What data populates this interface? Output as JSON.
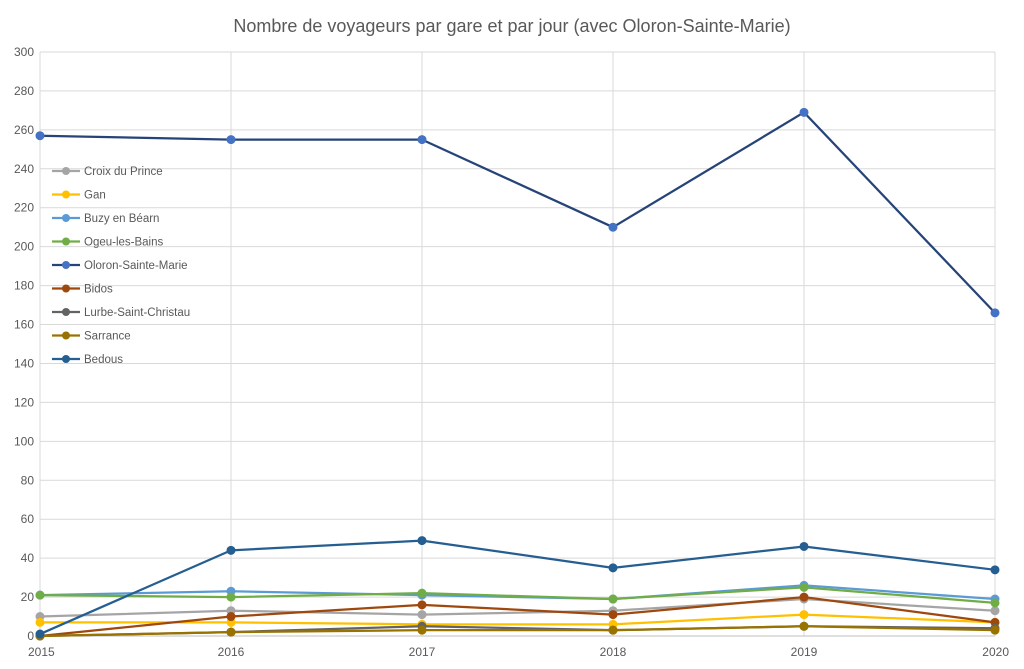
{
  "chart_data": {
    "type": "line",
    "title": "Nombre de voyageurs par gare et par jour (avec Oloron-Sainte-Marie)",
    "xlabel": "",
    "ylabel": "",
    "x": [
      "2015",
      "2016",
      "2017",
      "2018",
      "2019",
      "2020"
    ],
    "ylim": [
      0,
      300
    ],
    "yticks": [
      0,
      20,
      40,
      60,
      80,
      100,
      120,
      140,
      160,
      180,
      200,
      220,
      240,
      260,
      280,
      300
    ],
    "grid": true,
    "legend": "left",
    "series": [
      {
        "name": "Croix du Prince",
        "color": "#a5a5a5",
        "values": [
          10,
          13,
          11,
          13,
          19,
          13
        ]
      },
      {
        "name": "Gan",
        "color": "#ffc000",
        "values": [
          7,
          7,
          6,
          6,
          11,
          7
        ]
      },
      {
        "name": "Buzy en Béarn",
        "color": "#5b9bd5",
        "values": [
          21,
          23,
          21,
          19,
          26,
          19
        ]
      },
      {
        "name": "Ogeu-les-Bains",
        "color": "#70ad47",
        "values": [
          21,
          20,
          22,
          19,
          25,
          17
        ]
      },
      {
        "name": "Oloron-Sainte-Marie",
        "color": "#264478",
        "marker": "#4472c4",
        "values": [
          257,
          255,
          255,
          210,
          269,
          166
        ]
      },
      {
        "name": "Bidos",
        "color": "#9e480e",
        "values": [
          0,
          10,
          16,
          11,
          20,
          7
        ]
      },
      {
        "name": "Lurbe-Saint-Christau",
        "color": "#636363",
        "values": [
          0,
          2,
          5,
          3,
          5,
          4
        ]
      },
      {
        "name": "Sarrance",
        "color": "#997300",
        "values": [
          0,
          2,
          3,
          3,
          5,
          3
        ]
      },
      {
        "name": "Bedous",
        "color": "#255e91",
        "values": [
          1,
          44,
          49,
          35,
          46,
          34
        ]
      }
    ]
  }
}
